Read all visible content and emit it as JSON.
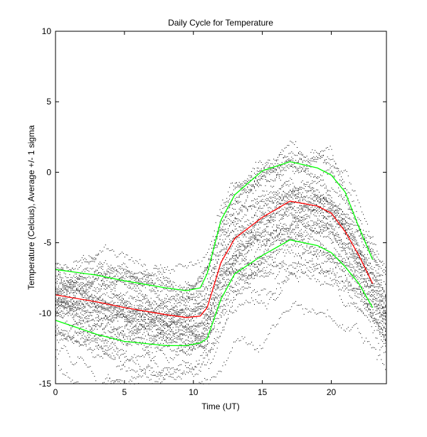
{
  "chart_data": {
    "type": "line",
    "title": "Daily Cycle for Temperature",
    "xlabel": "Time (UT)",
    "ylabel": "Temperature (Celcius), Average +/- 1 sigma",
    "xlim": [
      0,
      24
    ],
    "ylim": [
      -15,
      10
    ],
    "xticks": [
      0,
      5,
      10,
      15,
      20
    ],
    "yticks": [
      -15,
      -10,
      -5,
      0,
      5,
      10
    ],
    "grid": false,
    "background_scatter": true,
    "series": [
      {
        "color": "#00ff00",
        "x": [
          0,
          3,
          5,
          8,
          9.5,
          10.5,
          11,
          12,
          13,
          15,
          17,
          19,
          20,
          21,
          22,
          23
        ],
        "y": [
          -6.9,
          -7.3,
          -7.7,
          -8.2,
          -8.4,
          -8.2,
          -7.2,
          -3.4,
          -1.6,
          0.1,
          0.75,
          0.3,
          -0.2,
          -1.4,
          -3.9,
          -6.2
        ]
      },
      {
        "color": "#ff0000",
        "x": [
          0,
          3,
          5,
          8,
          9.5,
          10.5,
          11,
          12,
          13,
          15,
          17,
          19,
          20,
          21,
          22,
          23
        ],
        "y": [
          -8.7,
          -9.2,
          -9.6,
          -10.1,
          -10.3,
          -10.2,
          -9.6,
          -6.4,
          -4.7,
          -3.2,
          -2.05,
          -2.4,
          -2.9,
          -4.2,
          -5.9,
          -7.9
        ]
      },
      {
        "color": "#00ff00",
        "x": [
          0,
          3,
          5,
          8,
          9.5,
          10.5,
          11,
          12,
          13,
          15,
          17,
          19,
          20,
          21,
          22,
          23
        ],
        "y": [
          -10.5,
          -11.5,
          -12.0,
          -12.3,
          -12.3,
          -12.1,
          -11.8,
          -9.0,
          -7.2,
          -5.9,
          -4.8,
          -5.2,
          -5.7,
          -6.7,
          -7.9,
          -9.6
        ]
      }
    ]
  }
}
